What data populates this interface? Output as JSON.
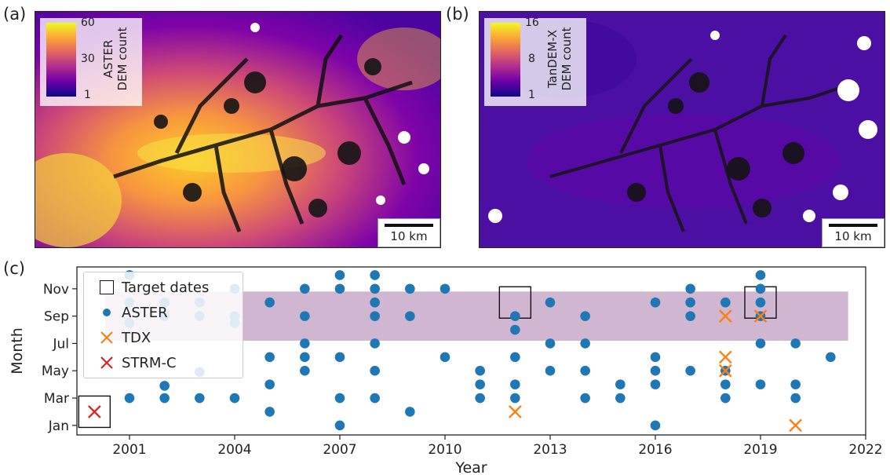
{
  "panels": {
    "a": {
      "label": "(a)",
      "colorbar": {
        "line1": "ASTER",
        "line2": "DEM count",
        "ticks": [
          "60",
          "30",
          "1"
        ]
      },
      "scalebar": "10 km"
    },
    "b": {
      "label": "(b)",
      "colorbar": {
        "line1": "TanDEM-X",
        "line2": "DEM count",
        "ticks": [
          "16",
          "8",
          "1"
        ]
      },
      "scalebar": "10 km"
    },
    "c": {
      "label": "(c)"
    }
  },
  "colors": {
    "aster": "#1f77b4",
    "tdx": "#ff7f0e",
    "srtm": "#d62728",
    "target_band": "#c8a9c9",
    "plasma": [
      "#0d0887",
      "#6a00a8",
      "#b12a90",
      "#e16462",
      "#fca636",
      "#f0f921"
    ]
  },
  "chart_data": {
    "type": "scatter",
    "xlabel": "Year",
    "ylabel": "Month",
    "xlim": [
      1999.5,
      2022
    ],
    "ylim": [
      0.3,
      12.6
    ],
    "xticks": [
      2001,
      2004,
      2007,
      2010,
      2013,
      2016,
      2019,
      2022
    ],
    "yticks": [
      {
        "value": 1,
        "label": "Jan"
      },
      {
        "value": 3,
        "label": "Mar"
      },
      {
        "value": 5,
        "label": "May"
      },
      {
        "value": 7,
        "label": "Jul"
      },
      {
        "value": 9,
        "label": "Sep"
      },
      {
        "value": 11,
        "label": "Nov"
      }
    ],
    "band": {
      "month_from": 7.2,
      "month_to": 10.8,
      "year_from": 2000.3,
      "year_to": 2021.5
    },
    "legend": [
      {
        "key": "target",
        "label": "Target dates"
      },
      {
        "key": "aster",
        "label": "ASTER"
      },
      {
        "key": "tdx",
        "label": "TDX"
      },
      {
        "key": "srtm",
        "label": "STRM-C"
      }
    ],
    "target_dates": [
      {
        "year": 2000,
        "month": 2
      },
      {
        "year": 2012,
        "month": 10
      },
      {
        "year": 2019,
        "month": 10
      }
    ],
    "aster": [
      [
        2001,
        12
      ],
      [
        2001,
        10
      ],
      [
        2001,
        8.5
      ],
      [
        2001,
        3
      ],
      [
        2002,
        10
      ],
      [
        2002,
        9
      ],
      [
        2002,
        3.9
      ],
      [
        2002,
        3
      ],
      [
        2003,
        10
      ],
      [
        2003,
        9
      ],
      [
        2003,
        4.9
      ],
      [
        2003,
        3
      ],
      [
        2004,
        11
      ],
      [
        2004,
        9
      ],
      [
        2004,
        8.5
      ],
      [
        2004,
        3
      ],
      [
        2005,
        10
      ],
      [
        2005,
        6
      ],
      [
        2005,
        4
      ],
      [
        2005,
        2
      ],
      [
        2006,
        11
      ],
      [
        2006,
        9
      ],
      [
        2006,
        7
      ],
      [
        2006,
        6
      ],
      [
        2006,
        5
      ],
      [
        2007,
        12
      ],
      [
        2007,
        11
      ],
      [
        2007,
        6
      ],
      [
        2007,
        3
      ],
      [
        2007,
        1
      ],
      [
        2008,
        12
      ],
      [
        2008,
        11
      ],
      [
        2008,
        10
      ],
      [
        2008,
        9
      ],
      [
        2008,
        7
      ],
      [
        2008,
        5
      ],
      [
        2008,
        3
      ],
      [
        2009,
        11
      ],
      [
        2009,
        9
      ],
      [
        2009,
        2
      ],
      [
        2010,
        11
      ],
      [
        2010,
        6
      ],
      [
        2011,
        5
      ],
      [
        2011,
        4
      ],
      [
        2011,
        3
      ],
      [
        2012,
        9
      ],
      [
        2012,
        8
      ],
      [
        2012,
        6
      ],
      [
        2012,
        4
      ],
      [
        2012,
        3
      ],
      [
        2013,
        10
      ],
      [
        2013,
        7
      ],
      [
        2013,
        5
      ],
      [
        2014,
        9
      ],
      [
        2014,
        7
      ],
      [
        2014,
        5
      ],
      [
        2014,
        3
      ],
      [
        2015,
        4
      ],
      [
        2015,
        3
      ],
      [
        2016,
        10
      ],
      [
        2016,
        6
      ],
      [
        2016,
        5
      ],
      [
        2016,
        4
      ],
      [
        2016,
        1
      ],
      [
        2017,
        11
      ],
      [
        2017,
        10
      ],
      [
        2017,
        9
      ],
      [
        2017,
        5
      ],
      [
        2018,
        10
      ],
      [
        2018,
        5
      ],
      [
        2018,
        4
      ],
      [
        2018,
        3
      ],
      [
        2019,
        12
      ],
      [
        2019,
        11
      ],
      [
        2019,
        10
      ],
      [
        2019,
        9
      ],
      [
        2019,
        7
      ],
      [
        2019,
        4
      ],
      [
        2020,
        7
      ],
      [
        2020,
        4
      ],
      [
        2020,
        3
      ],
      [
        2021,
        6
      ]
    ],
    "tdx": [
      [
        2012,
        2
      ],
      [
        2018,
        9
      ],
      [
        2018,
        6
      ],
      [
        2018,
        5
      ],
      [
        2019,
        9
      ],
      [
        2020,
        1
      ]
    ],
    "srtm": [
      [
        2000,
        2
      ]
    ]
  }
}
